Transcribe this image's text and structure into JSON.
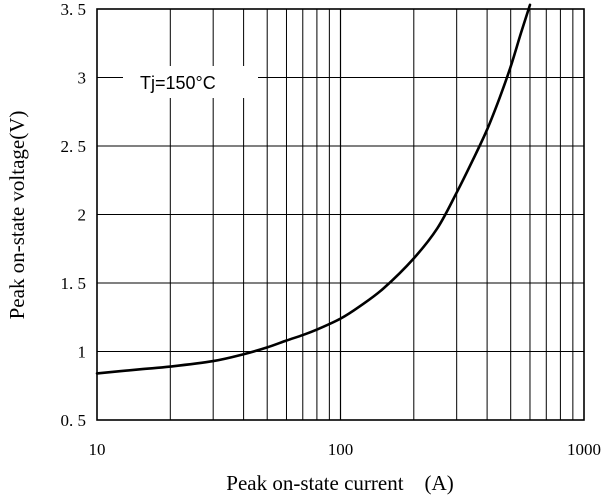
{
  "chart_data": {
    "type": "line",
    "title": "",
    "xlabel": "Peak on-state current    (A)",
    "ylabel": "Peak on-state voltage(V)",
    "x_scale": "log",
    "xlim": [
      10,
      1000
    ],
    "ylim": [
      0.5,
      3.5
    ],
    "x_ticks": [
      10,
      100,
      1000
    ],
    "x_tick_labels": [
      "10",
      "100",
      "1000"
    ],
    "y_ticks": [
      0.5,
      1,
      1.5,
      2,
      2.5,
      3,
      3.5
    ],
    "y_tick_labels": [
      "0. 5",
      "1",
      "1. 5",
      "2",
      "2. 5",
      "3",
      "3. 5"
    ],
    "grid": true,
    "annotation": "Tj=150°C",
    "series": [
      {
        "x": [
          10,
          15,
          20,
          30,
          40,
          50,
          60,
          70,
          80,
          100,
          120,
          150,
          200,
          250,
          300,
          350,
          400,
          450,
          500,
          550,
          600
        ],
        "y": [
          0.84,
          0.87,
          0.89,
          0.93,
          0.98,
          1.03,
          1.08,
          1.12,
          1.16,
          1.24,
          1.33,
          1.46,
          1.68,
          1.9,
          2.16,
          2.4,
          2.62,
          2.85,
          3.08,
          3.32,
          3.53
        ]
      }
    ]
  }
}
